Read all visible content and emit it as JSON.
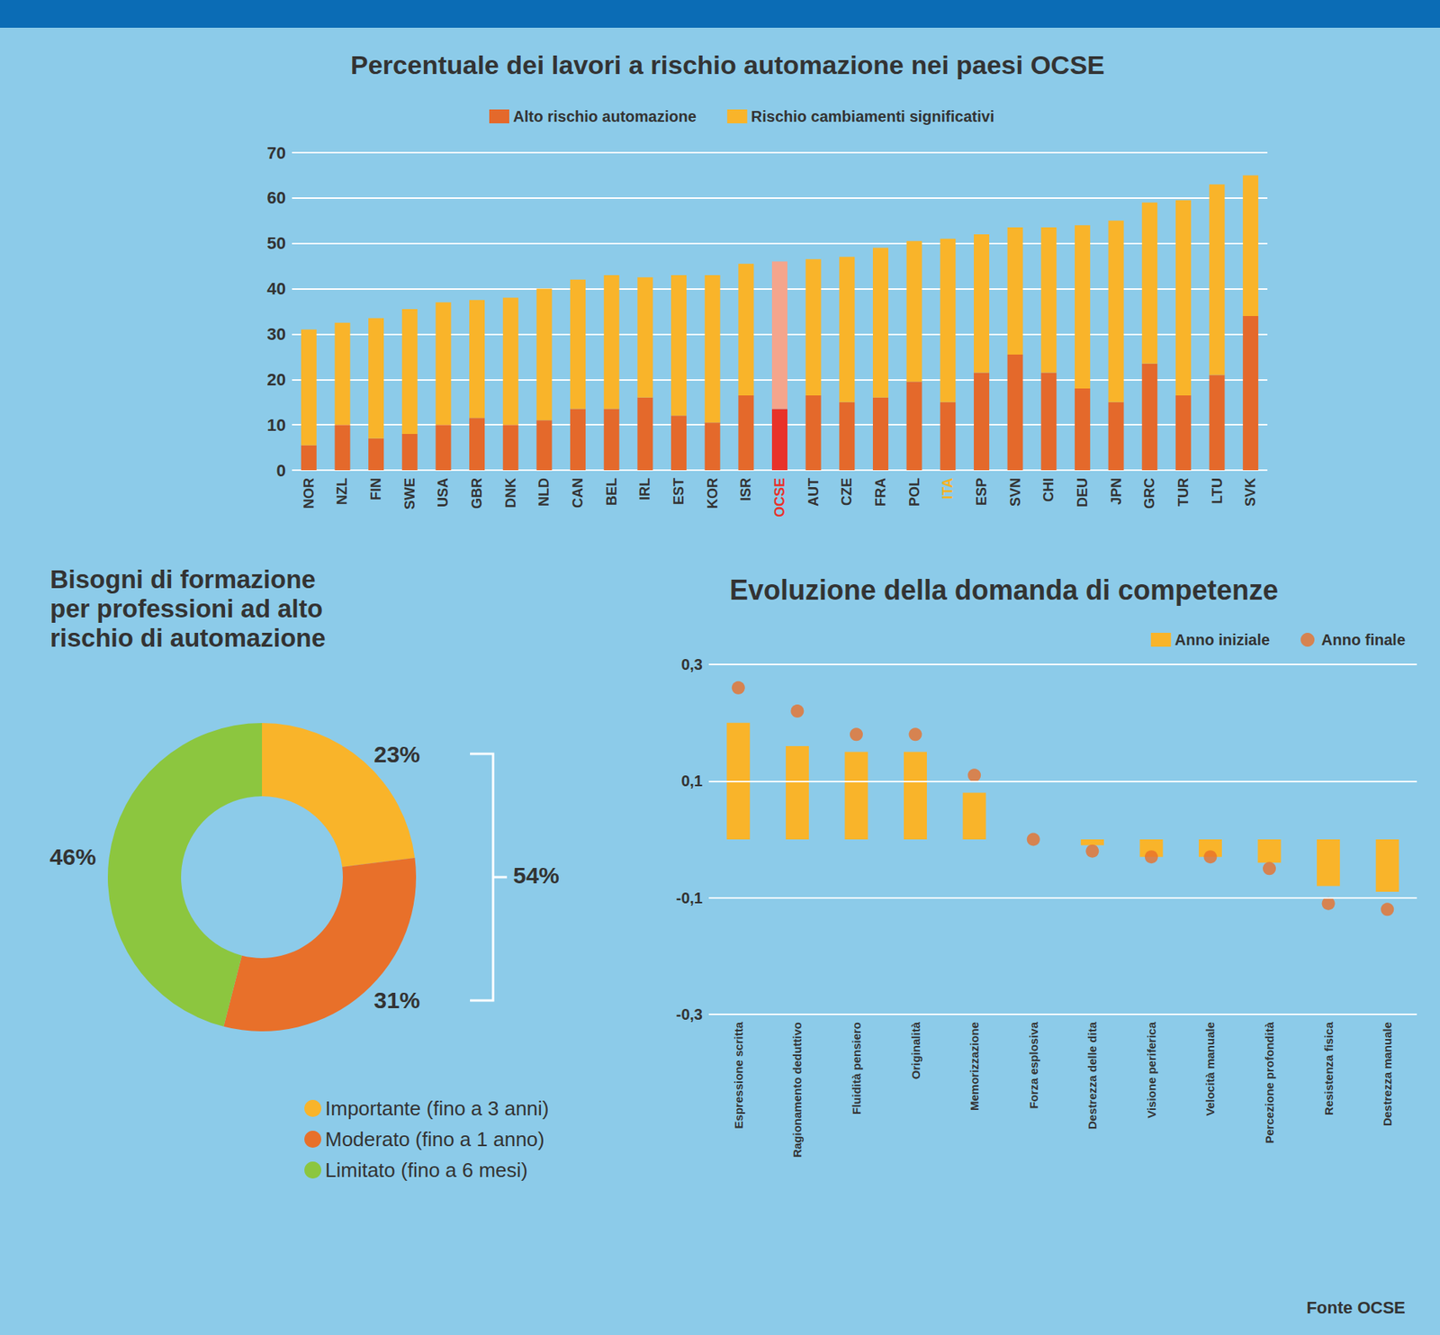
{
  "chart_data": [
    {
      "type": "bar",
      "title": "Percentuale dei lavori a rischio automazione nei paesi OCSE",
      "categories": [
        "NOR",
        "NZL",
        "FIN",
        "SWE",
        "USA",
        "GBR",
        "DNK",
        "NLD",
        "CAN",
        "BEL",
        "IRL",
        "EST",
        "KOR",
        "ISR",
        "OCSE",
        "AUT",
        "CZE",
        "FRA",
        "POL",
        "ITA",
        "ESP",
        "SVN",
        "CHI",
        "DEU",
        "JPN",
        "GRC",
        "TUR",
        "LTU",
        "SVK"
      ],
      "series": [
        {
          "name": "Alto rischio automazione",
          "color": "#e4692b",
          "colors": [
            "#e4692b",
            "#e4692b",
            "#e4692b",
            "#e4692b",
            "#e4692b",
            "#e4692b",
            "#e4692b",
            "#e4692b",
            "#e4692b",
            "#e4692b",
            "#e4692b",
            "#e4692b",
            "#e4692b",
            "#e4692b",
            "#e8322a",
            "#e4692b",
            "#e4692b",
            "#e4692b",
            "#e4692b",
            "#e4692b",
            "#e4692b",
            "#e4692b",
            "#e4692b",
            "#e4692b",
            "#e4692b",
            "#e4692b",
            "#e4692b",
            "#e4692b",
            "#e4692b"
          ],
          "values": [
            5.5,
            10,
            7,
            8,
            10,
            11.5,
            10,
            11,
            13.5,
            13.5,
            16,
            12,
            10.5,
            16.5,
            13.5,
            16.5,
            15,
            16,
            19.5,
            15,
            21.5,
            25.5,
            21.5,
            18,
            15,
            23.5,
            16.5,
            21,
            34
          ]
        },
        {
          "name": "Rischio cambiamenti significativi",
          "color": "#f9b42a",
          "colors": [
            "#f9b42a",
            "#f9b42a",
            "#f9b42a",
            "#f9b42a",
            "#f9b42a",
            "#f9b42a",
            "#f9b42a",
            "#f9b42a",
            "#f9b42a",
            "#f9b42a",
            "#f9b42a",
            "#f9b42a",
            "#f9b42a",
            "#f9b42a",
            "#f4a58c",
            "#f9b42a",
            "#f9b42a",
            "#f9b42a",
            "#f9b42a",
            "#f9b42a",
            "#f9b42a",
            "#f9b42a",
            "#f9b42a",
            "#f9b42a",
            "#f9b42a",
            "#f9b42a",
            "#f9b42a",
            "#f9b42a",
            "#f9b42a"
          ],
          "values": [
            25.5,
            22.5,
            26.5,
            27.5,
            27,
            26,
            28,
            29,
            28.5,
            29.5,
            26.5,
            31,
            32.5,
            29,
            32.5,
            30,
            32,
            33,
            31,
            36,
            30.5,
            28,
            32,
            36,
            40,
            35.5,
            43,
            42,
            31
          ]
        }
      ],
      "stacked": true,
      "ylim": [
        0,
        70
      ],
      "yticks": [
        0,
        10,
        20,
        30,
        40,
        50,
        60,
        70
      ],
      "grid": true,
      "legend": "top",
      "data_labels": false
    },
    {
      "type": "pie",
      "title": "Bisogni di formazione per professioni ad alto rischio di automazione",
      "categories": [
        "Importante (fino a 3 anni)",
        "Moderato (fino a 1 anno)",
        "Limitato (fino a 6 mesi)"
      ],
      "values": [
        23,
        31,
        46
      ],
      "value_labels": [
        "23%",
        "31%",
        "46%"
      ],
      "colors": [
        "#f9b42a",
        "#e8702a",
        "#8cc63f"
      ],
      "data_labels": true,
      "legend": "bottom",
      "annotations": [
        "54%"
      ]
    },
    {
      "type": "bar",
      "title": "Evoluzione della domanda di competenze",
      "categories": [
        "Espressione scritta",
        "Ragionamento deduttivo",
        "Fluidità pensiero",
        "Originalità",
        "Memorizzazione",
        "Forza esplosiva",
        "Destrezza delle dita",
        "Visione periferica",
        "Velocità manuale",
        "Percezione profondità",
        "Resistenza fisica",
        "Destrezza manuale"
      ],
      "series": [
        {
          "name": "Anno iniziale",
          "type": "bar",
          "color": "#f9b42a",
          "values": [
            0.2,
            0.16,
            0.15,
            0.15,
            0.08,
            0,
            -0.01,
            -0.03,
            -0.03,
            -0.04,
            -0.08,
            -0.09
          ]
        },
        {
          "name": "Anno finale",
          "type": "scatter",
          "marker": "circle",
          "color": "#e8702a",
          "values": [
            0.26,
            0.22,
            0.18,
            0.18,
            0.11,
            0,
            -0.02,
            -0.03,
            -0.03,
            -0.05,
            -0.11,
            -0.12
          ]
        }
      ],
      "ylim": [
        -0.3,
        0.3
      ],
      "yticks": [
        {
          "value": -0.3,
          "label": "-0,3"
        },
        {
          "value": -0.1,
          "label": "-0,1"
        },
        {
          "value": 0.1,
          "label": "0,1"
        },
        {
          "value": 0.3,
          "label": "0,3"
        }
      ],
      "grid": true,
      "legend": "top-right",
      "data_labels": false
    }
  ],
  "source": "Fonte OCSE"
}
